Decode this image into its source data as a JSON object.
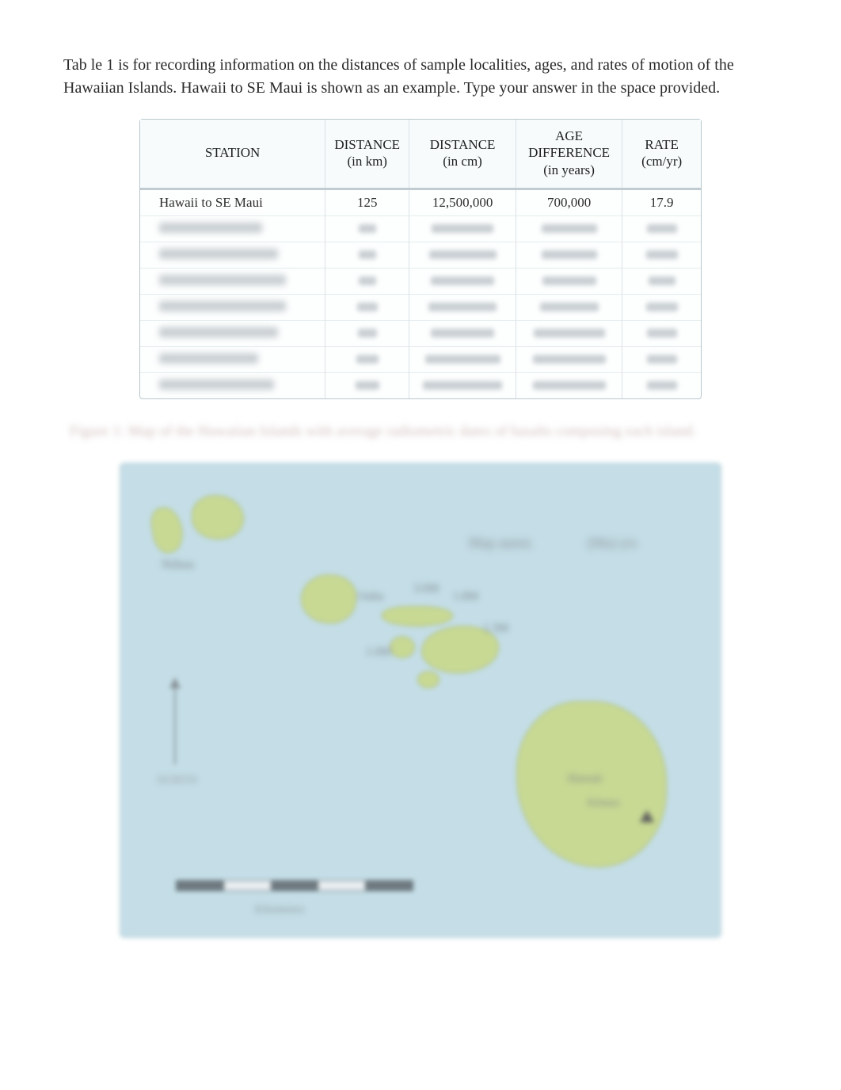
{
  "intro": {
    "text": "Tab le 1 is for recording information on the distances of sample localities, ages, and rates of motion of the Hawaiian Islands. Hawaii to SE Maui is shown as an example. Type your answer in the space provided."
  },
  "table": {
    "columns": [
      {
        "title": "STATION",
        "sub": ""
      },
      {
        "title": "DISTANCE",
        "sub": "(in km)"
      },
      {
        "title": "DISTANCE",
        "sub": "(in cm)"
      },
      {
        "title": "AGE\nDIFFERENCE",
        "sub": "(in years)"
      },
      {
        "title": "RATE",
        "sub": "(cm/yr)"
      }
    ],
    "rows": {
      "visible": {
        "station": "Hawaii to SE Maui",
        "distance_km": "125",
        "distance_cm": "12,500,000",
        "age_diff": "700,000",
        "rate": "17.9"
      },
      "blurred_count": 7,
      "blur_widths": {
        "station": [
          130,
          150,
          160,
          160,
          150,
          125,
          145
        ],
        "distance_km": [
          22,
          22,
          22,
          26,
          24,
          28,
          30
        ],
        "distance_cm": [
          78,
          85,
          80,
          86,
          80,
          95,
          100
        ],
        "age_diff": [
          70,
          70,
          68,
          74,
          90,
          92,
          92
        ],
        "rate": [
          38,
          40,
          34,
          40,
          38,
          38,
          38
        ]
      }
    },
    "colors": {
      "border": "#b9c7ce",
      "head_bg": "#f7fbfc",
      "divider": "#dbe3e7",
      "row_divider": "#e6edf0",
      "blur_fill": "#c9cfd3"
    }
  },
  "figure_caption": "Figure 1: Map of the Hawaiian Islands with average radiometric dates of basalts composing each island.",
  "map": {
    "type": "infographic-map",
    "background_color": "#c4dde6",
    "island_color": "#c8d994",
    "island_border": "#a6b97a",
    "labels": {
      "niihau": "Niihau",
      "key1": "Map annot.",
      "key2": "(Ma) yrs",
      "oahu": "Oahu",
      "molokai1": "3.0M",
      "molokai2": "1.8M",
      "maui": "1.3M",
      "kaho": "1.0M",
      "hawaii": "Hawaii",
      "volcano": "Kilauea",
      "north": "NORTH",
      "scale": "Kilometers"
    },
    "scale_bar": {
      "segments": 5,
      "dark_color": "#6e7a80",
      "light_color": "#e8eef1"
    }
  }
}
